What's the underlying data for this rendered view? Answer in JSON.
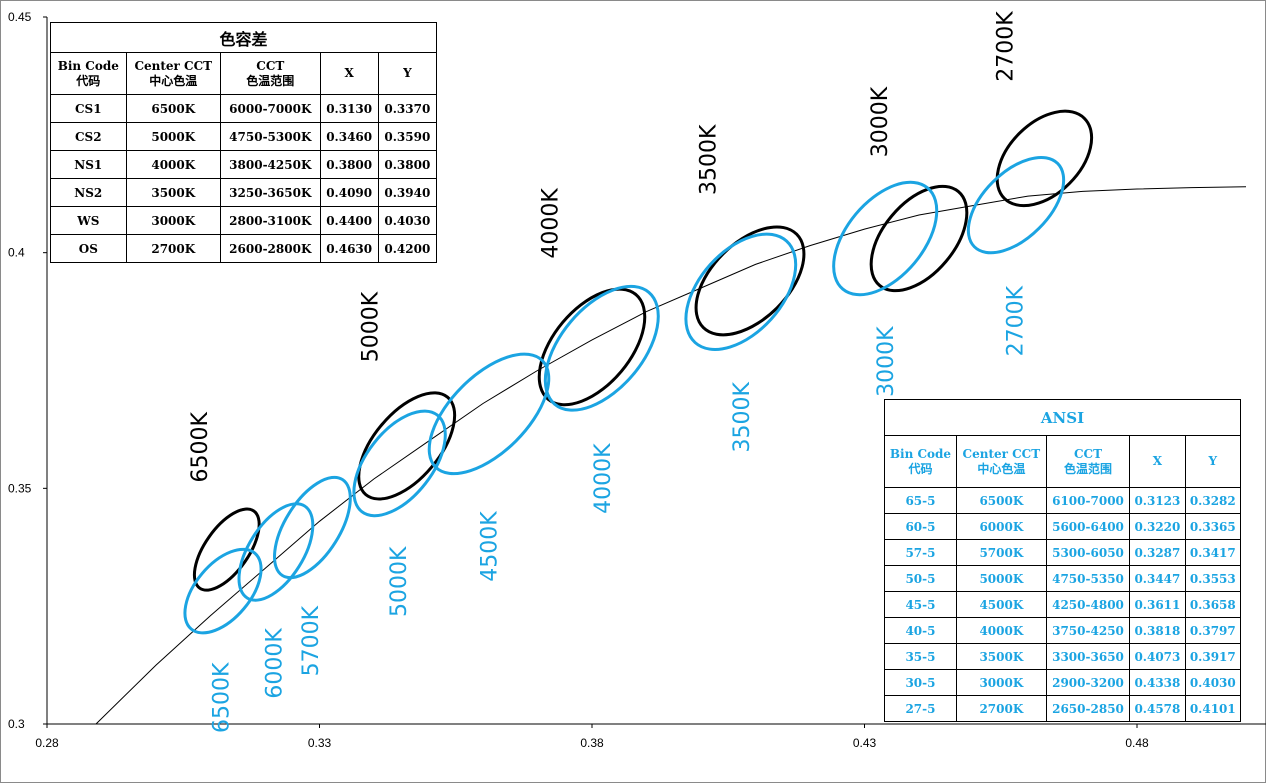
{
  "chart_data": {
    "type": "scatter",
    "x_ticks": [
      "0.28",
      "0.33",
      "0.38",
      "0.43",
      "0.48"
    ],
    "y_ticks": [
      "0.3",
      "0.35",
      "0.4",
      "0.45"
    ],
    "xlim": [
      0.28,
      0.5
    ],
    "ylim": [
      0.3,
      0.45
    ],
    "grid": false,
    "series": [
      {
        "name": "CS/NS/WS/OS (black ellipses)",
        "color": "#000000",
        "ellipses": [
          {
            "label": "6500K",
            "cx": 0.313,
            "cy": 0.337,
            "rx": 0.004,
            "ry": 0.01,
            "angle": 35
          },
          {
            "label": "5000K",
            "cx": 0.346,
            "cy": 0.359,
            "rx": 0.006,
            "ry": 0.0135,
            "angle": 40
          },
          {
            "label": "4000K",
            "cx": 0.38,
            "cy": 0.38,
            "rx": 0.007,
            "ry": 0.0145,
            "angle": 40
          },
          {
            "label": "3500K",
            "cx": 0.409,
            "cy": 0.394,
            "rx": 0.007,
            "ry": 0.014,
            "angle": 45
          },
          {
            "label": "3000K",
            "cx": 0.44,
            "cy": 0.403,
            "rx": 0.0065,
            "ry": 0.013,
            "angle": 40
          },
          {
            "label": "2700K",
            "cx": 0.463,
            "cy": 0.42,
            "rx": 0.0065,
            "ry": 0.012,
            "angle": 45
          }
        ]
      },
      {
        "name": "ANSI (blue ellipses)",
        "color": "#1ba4e2",
        "ellipses": [
          {
            "label": "6500K",
            "cx": 0.3123,
            "cy": 0.3282,
            "rx": 0.005,
            "ry": 0.0105,
            "angle": 40
          },
          {
            "label": "6000K",
            "cx": 0.322,
            "cy": 0.3365,
            "rx": 0.005,
            "ry": 0.0115,
            "angle": 32
          },
          {
            "label": "5700K",
            "cx": 0.3287,
            "cy": 0.3417,
            "rx": 0.005,
            "ry": 0.012,
            "angle": 32
          },
          {
            "label": "5000K",
            "cx": 0.3447,
            "cy": 0.3553,
            "rx": 0.006,
            "ry": 0.013,
            "angle": 38
          },
          {
            "label": "4500K",
            "cx": 0.3611,
            "cy": 0.3658,
            "rx": 0.007,
            "ry": 0.016,
            "angle": 45
          },
          {
            "label": "4000K",
            "cx": 0.3818,
            "cy": 0.3797,
            "rx": 0.0075,
            "ry": 0.0155,
            "angle": 40
          },
          {
            "label": "3500K",
            "cx": 0.4073,
            "cy": 0.3917,
            "rx": 0.0075,
            "ry": 0.0145,
            "angle": 42
          },
          {
            "label": "3000K",
            "cx": 0.4338,
            "cy": 0.403,
            "rx": 0.007,
            "ry": 0.014,
            "angle": 40
          },
          {
            "label": "2700K",
            "cx": 0.4578,
            "cy": 0.4101,
            "rx": 0.006,
            "ry": 0.0125,
            "angle": 45
          }
        ]
      }
    ],
    "curve": [
      [
        0.289,
        0.3
      ],
      [
        0.3,
        0.3125
      ],
      [
        0.31,
        0.323
      ],
      [
        0.32,
        0.333
      ],
      [
        0.33,
        0.343
      ],
      [
        0.34,
        0.352
      ],
      [
        0.35,
        0.36
      ],
      [
        0.36,
        0.368
      ],
      [
        0.37,
        0.375
      ],
      [
        0.38,
        0.3815
      ],
      [
        0.39,
        0.3875
      ],
      [
        0.4,
        0.3925
      ],
      [
        0.41,
        0.3975
      ],
      [
        0.42,
        0.4015
      ],
      [
        0.43,
        0.405
      ],
      [
        0.44,
        0.408
      ],
      [
        0.45,
        0.41
      ],
      [
        0.46,
        0.412
      ],
      [
        0.47,
        0.413
      ],
      [
        0.48,
        0.4135
      ],
      [
        0.49,
        0.4138
      ],
      [
        0.5,
        0.414
      ]
    ]
  },
  "table_cs": {
    "title": "色容差",
    "headers": [
      [
        "Bin Code",
        "代码"
      ],
      [
        "Center CCT",
        "中心色温"
      ],
      [
        "CCT",
        "色温范围"
      ],
      [
        "X"
      ],
      [
        "Y"
      ]
    ],
    "rows": [
      [
        "CS1",
        "6500K",
        "6000-7000K",
        "0.3130",
        "0.3370"
      ],
      [
        "CS2",
        "5000K",
        "4750-5300K",
        "0.3460",
        "0.3590"
      ],
      [
        "NS1",
        "4000K",
        "3800-4250K",
        "0.3800",
        "0.3800"
      ],
      [
        "NS2",
        "3500K",
        "3250-3650K",
        "0.4090",
        "0.3940"
      ],
      [
        "WS",
        "3000K",
        "2800-3100K",
        "0.4400",
        "0.4030"
      ],
      [
        "OS",
        "2700K",
        "2600-2800K",
        "0.4630",
        "0.4200"
      ]
    ]
  },
  "table_ansi": {
    "title": "ANSI",
    "headers": [
      [
        "Bin Code",
        "代码"
      ],
      [
        "Center CCT",
        "中心色温"
      ],
      [
        "CCT",
        "色温范围"
      ],
      [
        "X"
      ],
      [
        "Y"
      ]
    ],
    "rows": [
      [
        "65-5",
        "6500K",
        "6100-7000",
        "0.3123",
        "0.3282"
      ],
      [
        "60-5",
        "6000K",
        "5600-6400",
        "0.3220",
        "0.3365"
      ],
      [
        "57-5",
        "5700K",
        "5300-6050",
        "0.3287",
        "0.3417"
      ],
      [
        "50-5",
        "5000K",
        "4750-5350",
        "0.3447",
        "0.3553"
      ],
      [
        "45-5",
        "4500K",
        "4250-4800",
        "0.3611",
        "0.3658"
      ],
      [
        "40-5",
        "4000K",
        "3750-4250",
        "0.3818",
        "0.3797"
      ],
      [
        "35-5",
        "3500K",
        "3300-3650",
        "0.4073",
        "0.3917"
      ],
      [
        "30-5",
        "3000K",
        "2900-3200",
        "0.4338",
        "0.4030"
      ],
      [
        "27-5",
        "2700K",
        "2650-2850",
        "0.4578",
        "0.4101"
      ]
    ]
  }
}
